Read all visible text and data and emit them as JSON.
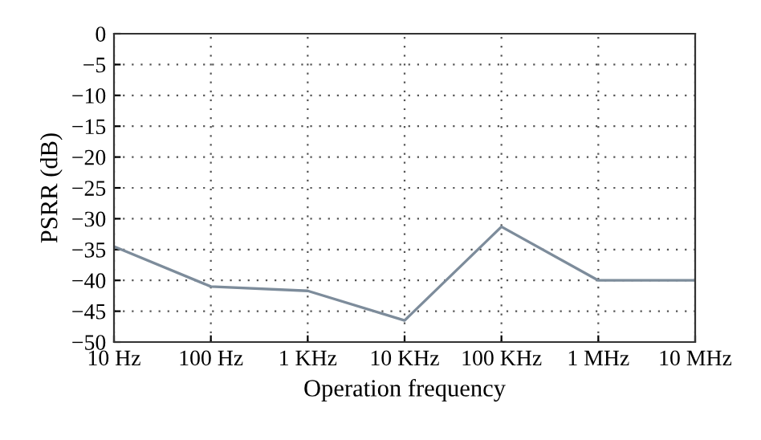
{
  "chart_data": {
    "type": "line",
    "xlabel": "Operation frequency",
    "ylabel": "PSRR (dB)",
    "categories": [
      "10 Hz",
      "100 Hz",
      "1 KHz",
      "10 KHz",
      "100 KHz",
      "1 MHz",
      "10 MHz"
    ],
    "series": [
      {
        "color": "#7d8c9b",
        "values": [
          -34.5,
          -41,
          -41.7,
          -46.5,
          -31.3,
          -40,
          -40
        ]
      }
    ],
    "ylim": [
      -50,
      0
    ],
    "yticks": [
      -50,
      -45,
      -40,
      -35,
      -30,
      -25,
      -20,
      -15,
      -10,
      -5,
      0
    ],
    "grid": true,
    "marker": "none",
    "line_style": "solid",
    "legend": false
  }
}
